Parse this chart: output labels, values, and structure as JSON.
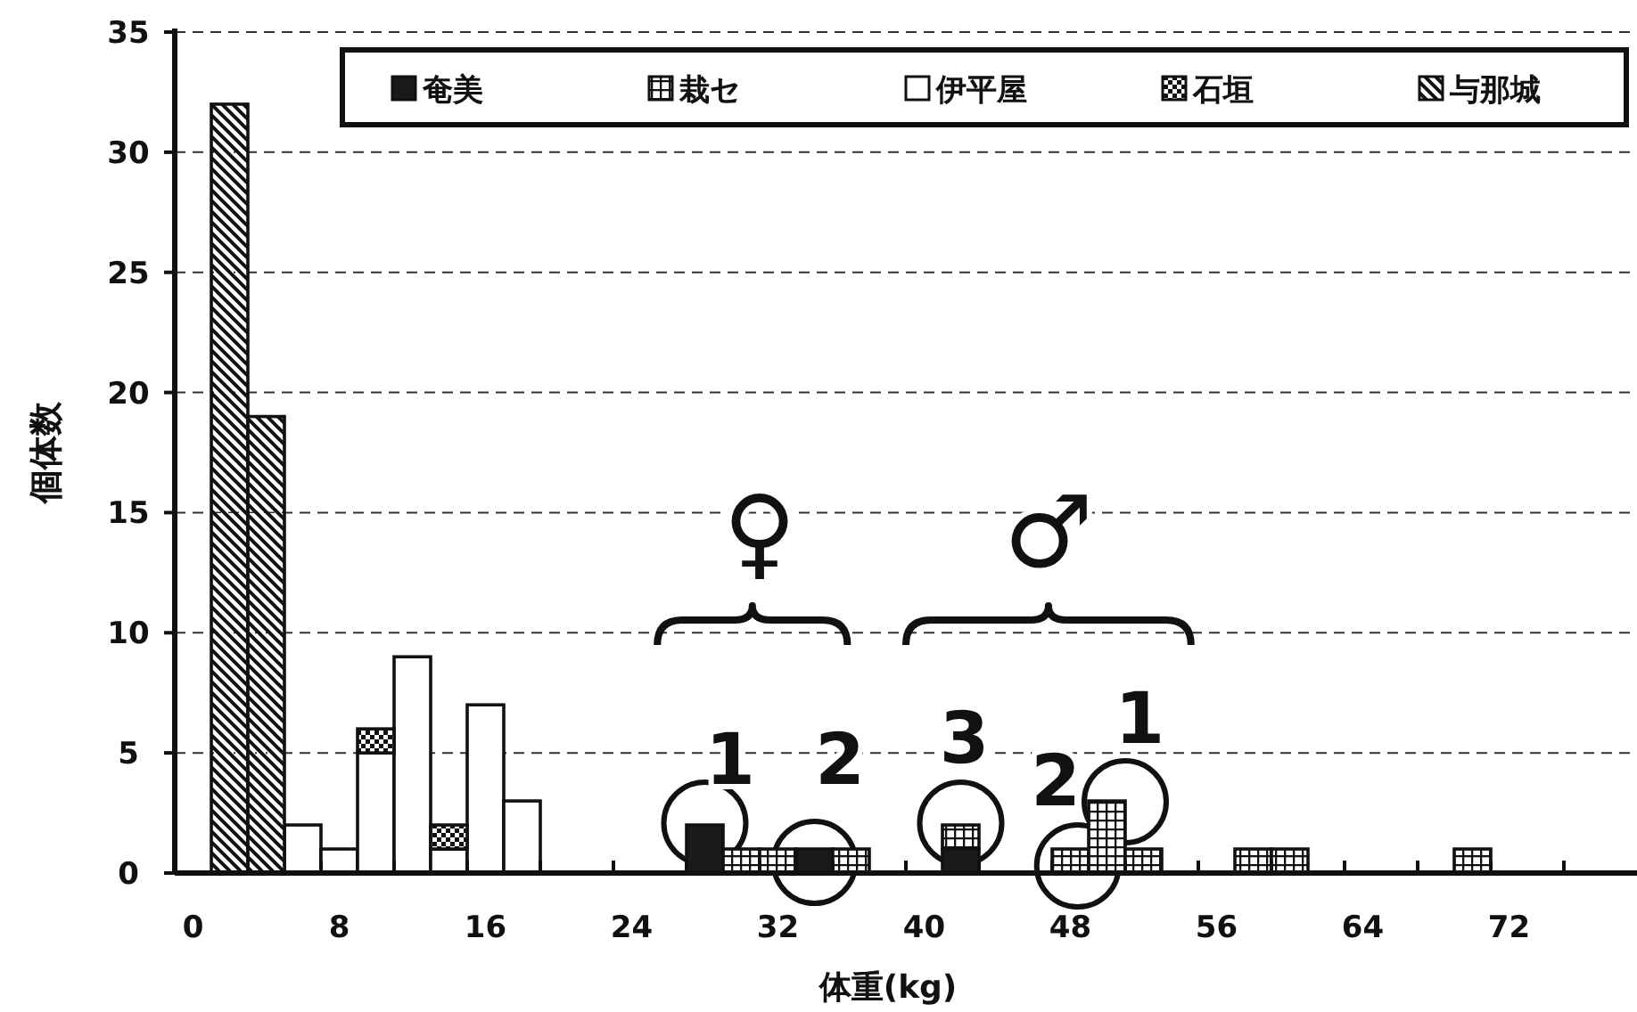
{
  "chart_data": {
    "type": "bar",
    "stacked": true,
    "categories": [
      "0",
      null,
      null,
      null,
      "8",
      null,
      null,
      null,
      "16",
      null,
      null,
      null,
      "24",
      null,
      null,
      null,
      "32",
      null,
      null,
      null,
      "40",
      null,
      null,
      null,
      "48",
      null,
      null,
      null,
      "56",
      null,
      null,
      null,
      "64",
      null,
      null,
      null,
      "72",
      null,
      null,
      null
    ],
    "series": [
      {
        "name": "奄美",
        "color": "#1a1a1a",
        "values": [
          0,
          0,
          0,
          0,
          0,
          0,
          0,
          0,
          0,
          0,
          0,
          0,
          0,
          0,
          2,
          0,
          0,
          1,
          0,
          0,
          0,
          1,
          0,
          0,
          0,
          0,
          0,
          0,
          0,
          0,
          0,
          0,
          0,
          0,
          0,
          0,
          0,
          0,
          0,
          0
        ]
      },
      {
        "name": "栽セ",
        "color": "#111111",
        "values": [
          0,
          0,
          0,
          0,
          0,
          0,
          0,
          0,
          0,
          0,
          0,
          0,
          0,
          0,
          0,
          1,
          1,
          0,
          1,
          0,
          0,
          1,
          0,
          0,
          1,
          3,
          1,
          0,
          0,
          1,
          1,
          0,
          0,
          0,
          0,
          1,
          0,
          0,
          0,
          0
        ]
      },
      {
        "name": "伊平屋",
        "color": "#ffffff",
        "values": [
          0,
          0,
          0,
          2,
          1,
          5,
          9,
          1,
          7,
          3,
          0,
          0,
          0,
          0,
          0,
          0,
          0,
          0,
          0,
          0,
          0,
          0,
          0,
          0,
          0,
          0,
          0,
          0,
          0,
          0,
          0,
          0,
          0,
          0,
          0,
          0,
          0,
          0,
          0,
          0
        ]
      },
      {
        "name": "石垣",
        "color": "#111111",
        "values": [
          0,
          0,
          0,
          0,
          0,
          1,
          0,
          1,
          0,
          0,
          0,
          0,
          0,
          0,
          0,
          0,
          0,
          0,
          0,
          0,
          0,
          0,
          0,
          0,
          0,
          0,
          0,
          0,
          0,
          0,
          0,
          0,
          0,
          0,
          0,
          0,
          0,
          0,
          0,
          0
        ]
      },
      {
        "name": "与那城",
        "color": "#111111",
        "values": [
          0,
          32,
          19,
          0,
          0,
          0,
          0,
          0,
          0,
          0,
          0,
          0,
          0,
          0,
          0,
          0,
          0,
          0,
          0,
          0,
          0,
          0,
          0,
          0,
          0,
          0,
          0,
          0,
          0,
          0,
          0,
          0,
          0,
          0,
          0,
          0,
          0,
          0,
          0,
          0
        ]
      }
    ],
    "xlabel": "体重(kg)",
    "ylabel": "個体数",
    "ylim": [
      0,
      35
    ],
    "yticks": [
      0,
      5,
      10,
      15,
      20,
      25,
      30,
      35
    ],
    "grid": "y",
    "legend": "top right",
    "annotations": [
      "♀",
      "1",
      "2",
      "♂",
      "3",
      "2",
      "1"
    ]
  }
}
